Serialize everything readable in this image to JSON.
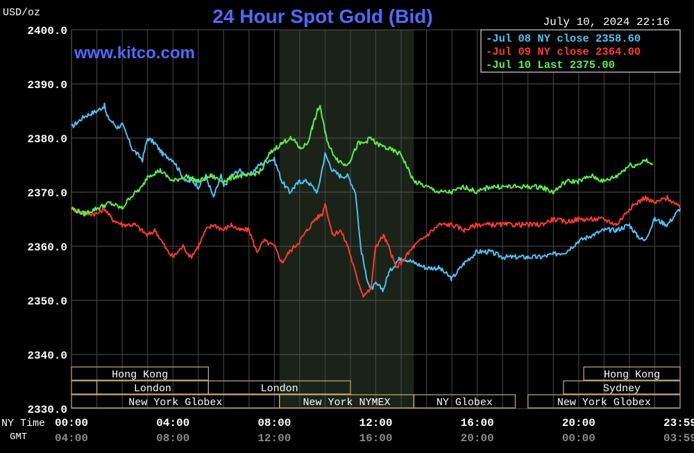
{
  "chart_data": {
    "type": "line",
    "title": "24 Hour Spot Gold (Bid)",
    "units": "USD/oz",
    "website": "www.kitco.com",
    "timestamp": "July 10, 2024 22:16",
    "ylim": [
      2330,
      2400
    ],
    "y_ticks": [
      "2400.0",
      "2390.0",
      "2380.0",
      "2370.0",
      "2360.0",
      "2350.0",
      "2340.0",
      "2330.0"
    ],
    "y_tick_values": [
      2400,
      2390,
      2380,
      2370,
      2360,
      2350,
      2340,
      2330
    ],
    "x_range_hours": [
      0,
      24
    ],
    "x_tick_hours": [
      0,
      4,
      8,
      12,
      16,
      20,
      24
    ],
    "x_row_labels": {
      "ny": "NY Time",
      "gmt": "GMT"
    },
    "x_ticks_ny": [
      "00:00",
      "04:00",
      "08:00",
      "12:00",
      "16:00",
      "20:00",
      "23:59"
    ],
    "x_ticks_gmt": [
      "04:00",
      "08:00",
      "12:00",
      "16:00",
      "20:00",
      "00:00",
      "03:59"
    ],
    "grid": true,
    "highlight_hours": [
      8.2,
      13.5
    ],
    "legend_position": "top-right",
    "series": [
      {
        "name": "Jul 08 NY close 2358.60",
        "color": "#4fc3f7",
        "x": [
          0,
          0.5,
          1,
          1.3,
          1.4,
          1.8,
          2,
          2.4,
          2.8,
          3,
          3.3,
          3.6,
          4,
          4.5,
          4.8,
          5,
          5.3,
          5.6,
          5.9,
          6,
          6.3,
          6.6,
          7,
          7.4,
          7.8,
          8,
          8.3,
          8.6,
          8.8,
          9,
          9.3,
          9.7,
          10,
          10.3,
          10.6,
          10.9,
          11.2,
          11.4,
          11.6,
          11.8,
          12,
          12.3,
          12.5,
          12.8,
          13,
          13.5,
          14,
          14.5,
          15,
          15.5,
          16,
          16.5,
          17,
          17.5,
          18,
          18.5,
          19,
          19.5,
          20,
          20.5,
          21,
          21.5,
          22,
          22.3,
          22.6,
          23,
          23.5,
          24
        ],
        "values": [
          2382,
          2384,
          2385,
          2386,
          2384,
          2382,
          2382.5,
          2378,
          2376,
          2380,
          2379,
          2377,
          2376,
          2372,
          2372,
          2371,
          2373,
          2369,
          2373,
          2371,
          2373,
          2374,
          2373,
          2375,
          2376,
          2376,
          2372,
          2370,
          2371,
          2372,
          2372,
          2370,
          2377,
          2374,
          2373,
          2373,
          2370,
          2360,
          2355,
          2352,
          2353,
          2352,
          2355,
          2357,
          2358,
          2357,
          2356,
          2356,
          2354,
          2357,
          2359,
          2359,
          2358,
          2358,
          2358,
          2358,
          2358.5,
          2359,
          2361,
          2362,
          2363,
          2363,
          2364,
          2362,
          2361,
          2365,
          2364,
          2367
        ],
        "end_hour": 24
      },
      {
        "name": "Jul 09 NY close 2364.00",
        "color": "#ff3b30",
        "x": [
          0,
          0.5,
          1,
          1.3,
          1.6,
          2,
          2.5,
          3,
          3.3,
          3.8,
          4,
          4.4,
          4.7,
          5,
          5.3,
          5.6,
          6,
          6.3,
          6.6,
          7,
          7.3,
          7.6,
          8,
          8.3,
          8.6,
          9,
          9.3,
          9.6,
          9.9,
          10,
          10.3,
          10.6,
          10.9,
          11.2,
          11.5,
          11.8,
          12,
          12.3,
          12.5,
          12.8,
          13,
          13.5,
          14,
          14.5,
          15,
          15.5,
          16,
          16.5,
          17,
          17.5,
          18,
          18.5,
          19,
          19.5,
          20,
          20.5,
          21,
          21.5,
          22,
          22.3,
          22.6,
          23,
          23.5,
          24
        ],
        "values": [
          2367,
          2366,
          2366,
          2367,
          2365,
          2364,
          2364,
          2362,
          2363,
          2359,
          2358,
          2360,
          2358,
          2360,
          2363,
          2364,
          2363,
          2364,
          2363,
          2363,
          2359,
          2361,
          2360,
          2357,
          2359,
          2361,
          2363,
          2365,
          2366,
          2368,
          2362,
          2363,
          2360,
          2355,
          2351,
          2352,
          2360,
          2362,
          2360,
          2356,
          2357,
          2360,
          2362,
          2364,
          2364,
          2363,
          2364,
          2364,
          2364,
          2364,
          2364,
          2364,
          2365,
          2364.5,
          2365,
          2365,
          2365,
          2364,
          2367,
          2368,
          2369,
          2368,
          2369,
          2367
        ],
        "end_hour": 24
      },
      {
        "name": "Jul 10 Last 2375.00",
        "color": "#5cf04a",
        "x": [
          0,
          0.5,
          1,
          1.5,
          2,
          2.3,
          2.8,
          3,
          3.5,
          4,
          4.5,
          5,
          5.5,
          6,
          6.5,
          7,
          7.5,
          7.8,
          8,
          8.3,
          8.6,
          8.9,
          9,
          9.3,
          9.5,
          9.7,
          9.8,
          10,
          10.2,
          10.5,
          10.8,
          11,
          11.3,
          11.5,
          11.8,
          12,
          12.5,
          13,
          13.5,
          14,
          14.5,
          15,
          15.5,
          16,
          16.5,
          17,
          17.5,
          18,
          18.5,
          19,
          19.5,
          20,
          20.5,
          21,
          21.5,
          22,
          22.3,
          22.6,
          22.9
        ],
        "values": [
          2367,
          2366,
          2367,
          2368,
          2367,
          2369,
          2371,
          2373,
          2374,
          2372,
          2373,
          2372,
          2373,
          2372,
          2373,
          2373,
          2374,
          2377,
          2378,
          2379,
          2380,
          2379,
          2378,
          2379,
          2382,
          2385,
          2386,
          2381,
          2378,
          2376,
          2375,
          2376,
          2379,
          2379,
          2380,
          2379,
          2378,
          2377,
          2372,
          2371,
          2370,
          2370,
          2371,
          2370,
          2371,
          2371,
          2371,
          2371,
          2371,
          2370,
          2372,
          2372,
          2373,
          2372,
          2373,
          2375,
          2375,
          2376,
          2375
        ],
        "end_hour": 22.9
      }
    ],
    "session_rows": [
      [
        {
          "label": "Hong Kong",
          "start": 0,
          "end": 5.4
        },
        {
          "label": "Hong Kong",
          "start": 20.2,
          "end": 24
        }
      ],
      [
        {
          "label": "",
          "start": 0,
          "end": 1
        },
        {
          "label": "London",
          "start": 1,
          "end": 5.4
        },
        {
          "label": "London",
          "start": 5.4,
          "end": 11
        },
        {
          "label": "Sydney",
          "start": 19.4,
          "end": 24
        }
      ],
      [
        {
          "label": "New York Globex",
          "start": 0,
          "end": 8.2
        },
        {
          "label": "New York NYMEX",
          "start": 8.2,
          "end": 13.5
        },
        {
          "label": "NY Globex",
          "start": 13.5,
          "end": 17.5
        },
        {
          "label": "New York Globex",
          "start": 18,
          "end": 24
        }
      ]
    ]
  }
}
